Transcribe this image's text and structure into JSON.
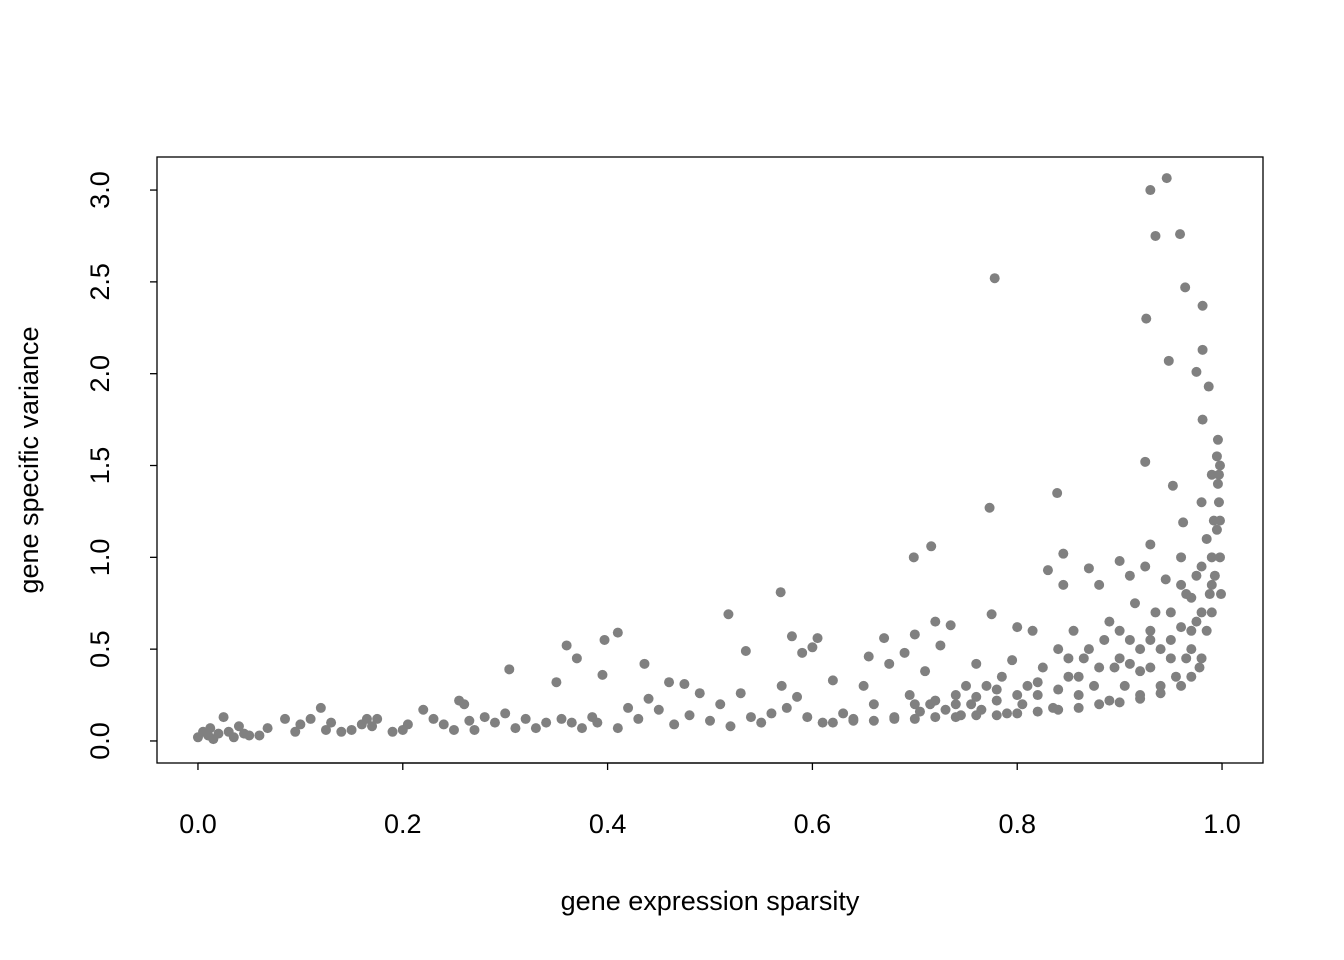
{
  "chart_data": {
    "type": "scatter",
    "title": "",
    "xlabel": "gene expression sparsity",
    "ylabel": "gene specific variance",
    "xlim": [
      -0.04,
      1.04
    ],
    "ylim": [
      -0.12,
      3.18
    ],
    "xticks": [
      0,
      0.2,
      0.4,
      0.6,
      0.8,
      1.0
    ],
    "xtick_labels": [
      "0.0",
      "0.2",
      "0.4",
      "0.6",
      "0.8",
      "1.0"
    ],
    "yticks": [
      0,
      0.5,
      1.0,
      1.5,
      2.0,
      2.5,
      3.0
    ],
    "ytick_labels": [
      "0.0",
      "0.5",
      "1.0",
      "1.5",
      "2.0",
      "2.5",
      "3.0"
    ],
    "grid": false,
    "legend": "none",
    "point_color": "#808080",
    "points": [
      [
        0,
        0.02
      ],
      [
        0.005,
        0.05
      ],
      [
        0.01,
        0.03
      ],
      [
        0.012,
        0.07
      ],
      [
        0.015,
        0.01
      ],
      [
        0.02,
        0.04
      ],
      [
        0.025,
        0.13
      ],
      [
        0.03,
        0.05
      ],
      [
        0.035,
        0.02
      ],
      [
        0.04,
        0.08
      ],
      [
        0.045,
        0.04
      ],
      [
        0.05,
        0.03
      ],
      [
        0.06,
        0.03
      ],
      [
        0.068,
        0.07
      ],
      [
        0.085,
        0.12
      ],
      [
        0.095,
        0.05
      ],
      [
        0.1,
        0.09
      ],
      [
        0.11,
        0.12
      ],
      [
        0.12,
        0.18
      ],
      [
        0.125,
        0.06
      ],
      [
        0.13,
        0.1
      ],
      [
        0.14,
        0.05
      ],
      [
        0.15,
        0.06
      ],
      [
        0.16,
        0.09
      ],
      [
        0.165,
        0.12
      ],
      [
        0.17,
        0.08
      ],
      [
        0.175,
        0.12
      ],
      [
        0.19,
        0.05
      ],
      [
        0.2,
        0.06
      ],
      [
        0.205,
        0.09
      ],
      [
        0.22,
        0.17
      ],
      [
        0.23,
        0.12
      ],
      [
        0.24,
        0.09
      ],
      [
        0.25,
        0.06
      ],
      [
        0.255,
        0.22
      ],
      [
        0.26,
        0.2
      ],
      [
        0.265,
        0.11
      ],
      [
        0.27,
        0.06
      ],
      [
        0.28,
        0.13
      ],
      [
        0.29,
        0.1
      ],
      [
        0.3,
        0.15
      ],
      [
        0.304,
        0.39
      ],
      [
        0.31,
        0.07
      ],
      [
        0.32,
        0.12
      ],
      [
        0.33,
        0.07
      ],
      [
        0.34,
        0.1
      ],
      [
        0.35,
        0.32
      ],
      [
        0.355,
        0.12
      ],
      [
        0.36,
        0.52
      ],
      [
        0.365,
        0.1
      ],
      [
        0.37,
        0.45
      ],
      [
        0.375,
        0.07
      ],
      [
        0.385,
        0.13
      ],
      [
        0.39,
        0.1
      ],
      [
        0.395,
        0.36
      ],
      [
        0.397,
        0.55
      ],
      [
        0.41,
        0.59
      ],
      [
        0.41,
        0.07
      ],
      [
        0.42,
        0.18
      ],
      [
        0.43,
        0.12
      ],
      [
        0.436,
        0.42
      ],
      [
        0.44,
        0.23
      ],
      [
        0.45,
        0.17
      ],
      [
        0.46,
        0.32
      ],
      [
        0.465,
        0.09
      ],
      [
        0.475,
        0.31
      ],
      [
        0.48,
        0.14
      ],
      [
        0.49,
        0.26
      ],
      [
        0.5,
        0.11
      ],
      [
        0.51,
        0.2
      ],
      [
        0.518,
        0.69
      ],
      [
        0.52,
        0.08
      ],
      [
        0.53,
        0.26
      ],
      [
        0.535,
        0.49
      ],
      [
        0.54,
        0.13
      ],
      [
        0.55,
        0.1
      ],
      [
        0.56,
        0.15
      ],
      [
        0.569,
        0.81
      ],
      [
        0.57,
        0.3
      ],
      [
        0.575,
        0.18
      ],
      [
        0.58,
        0.57
      ],
      [
        0.585,
        0.24
      ],
      [
        0.59,
        0.48
      ],
      [
        0.595,
        0.13
      ],
      [
        0.6,
        0.51
      ],
      [
        0.605,
        0.56
      ],
      [
        0.61,
        0.1
      ],
      [
        0.62,
        0.33
      ],
      [
        0.63,
        0.15
      ],
      [
        0.64,
        0.12
      ],
      [
        0.65,
        0.3
      ],
      [
        0.655,
        0.46
      ],
      [
        0.66,
        0.2
      ],
      [
        0.67,
        0.56
      ],
      [
        0.675,
        0.42
      ],
      [
        0.68,
        0.13
      ],
      [
        0.69,
        0.48
      ],
      [
        0.695,
        0.25
      ],
      [
        0.699,
        1.0
      ],
      [
        0.7,
        0.58
      ],
      [
        0.705,
        0.16
      ],
      [
        0.71,
        0.38
      ],
      [
        0.715,
        0.2
      ],
      [
        0.716,
        1.06
      ],
      [
        0.72,
        0.65
      ],
      [
        0.725,
        0.52
      ],
      [
        0.73,
        0.17
      ],
      [
        0.735,
        0.63
      ],
      [
        0.74,
        0.25
      ],
      [
        0.745,
        0.14
      ],
      [
        0.75,
        0.3
      ],
      [
        0.755,
        0.2
      ],
      [
        0.76,
        0.42
      ],
      [
        0.765,
        0.17
      ],
      [
        0.77,
        0.3
      ],
      [
        0.773,
        1.27
      ],
      [
        0.775,
        0.69
      ],
      [
        0.778,
        2.52
      ],
      [
        0.78,
        0.22
      ],
      [
        0.785,
        0.35
      ],
      [
        0.79,
        0.15
      ],
      [
        0.795,
        0.44
      ],
      [
        0.8,
        0.62
      ],
      [
        0.805,
        0.2
      ],
      [
        0.81,
        0.3
      ],
      [
        0.815,
        0.6
      ],
      [
        0.82,
        0.25
      ],
      [
        0.825,
        0.4
      ],
      [
        0.83,
        0.93
      ],
      [
        0.835,
        0.18
      ],
      [
        0.839,
        1.35
      ],
      [
        0.84,
        0.5
      ],
      [
        0.845,
        1.02
      ],
      [
        0.845,
        0.85
      ],
      [
        0.85,
        0.35
      ],
      [
        0.855,
        0.6
      ],
      [
        0.86,
        0.25
      ],
      [
        0.865,
        0.45
      ],
      [
        0.87,
        0.94
      ],
      [
        0.875,
        0.3
      ],
      [
        0.88,
        0.85
      ],
      [
        0.885,
        0.55
      ],
      [
        0.89,
        0.22
      ],
      [
        0.895,
        0.4
      ],
      [
        0.9,
        0.98
      ],
      [
        0.9,
        0.6
      ],
      [
        0.905,
        0.3
      ],
      [
        0.91,
        0.9
      ],
      [
        0.915,
        0.75
      ],
      [
        0.92,
        0.5
      ],
      [
        0.92,
        0.25
      ],
      [
        0.925,
        0.95
      ],
      [
        0.925,
        1.52
      ],
      [
        0.926,
        2.3
      ],
      [
        0.93,
        1.07
      ],
      [
        0.93,
        3.0
      ],
      [
        0.93,
        0.4
      ],
      [
        0.935,
        2.75
      ],
      [
        0.935,
        0.7
      ],
      [
        0.94,
        0.3
      ],
      [
        0.945,
        0.88
      ],
      [
        0.946,
        3.065
      ],
      [
        0.948,
        2.07
      ],
      [
        0.95,
        0.55
      ],
      [
        0.952,
        1.39
      ],
      [
        0.955,
        0.35
      ],
      [
        0.959,
        2.76
      ],
      [
        0.96,
        1.0
      ],
      [
        0.962,
        1.19
      ],
      [
        0.964,
        2.47
      ],
      [
        0.965,
        0.8
      ],
      [
        0.965,
        0.45
      ],
      [
        0.97,
        0.6
      ],
      [
        0.975,
        0.9
      ],
      [
        0.975,
        2.01
      ],
      [
        0.978,
        0.4
      ],
      [
        0.98,
        1.3
      ],
      [
        0.981,
        2.13
      ],
      [
        0.981,
        2.37
      ],
      [
        0.981,
        1.75
      ],
      [
        0.985,
        1.1
      ],
      [
        0.987,
        1.93
      ],
      [
        0.988,
        0.8
      ],
      [
        0.99,
        1.45
      ],
      [
        0.992,
        1.2
      ],
      [
        0.995,
        1.55
      ],
      [
        0.996,
        1.64
      ],
      [
        0.997,
        1.3
      ],
      [
        0.998,
        1.0
      ],
      [
        0.62,
        0.1
      ],
      [
        0.64,
        0.11
      ],
      [
        0.66,
        0.11
      ],
      [
        0.68,
        0.12
      ],
      [
        0.7,
        0.12
      ],
      [
        0.72,
        0.13
      ],
      [
        0.74,
        0.13
      ],
      [
        0.76,
        0.14
      ],
      [
        0.78,
        0.14
      ],
      [
        0.8,
        0.15
      ],
      [
        0.82,
        0.16
      ],
      [
        0.84,
        0.17
      ],
      [
        0.86,
        0.18
      ],
      [
        0.88,
        0.2
      ],
      [
        0.9,
        0.21
      ],
      [
        0.92,
        0.23
      ],
      [
        0.94,
        0.26
      ],
      [
        0.96,
        0.3
      ],
      [
        0.97,
        0.35
      ],
      [
        0.98,
        0.45
      ],
      [
        0.99,
        0.7
      ],
      [
        0.7,
        0.2
      ],
      [
        0.72,
        0.22
      ],
      [
        0.74,
        0.2
      ],
      [
        0.76,
        0.24
      ],
      [
        0.78,
        0.28
      ],
      [
        0.8,
        0.25
      ],
      [
        0.82,
        0.32
      ],
      [
        0.84,
        0.28
      ],
      [
        0.86,
        0.35
      ],
      [
        0.88,
        0.4
      ],
      [
        0.9,
        0.45
      ],
      [
        0.91,
        0.55
      ],
      [
        0.92,
        0.38
      ],
      [
        0.93,
        0.6
      ],
      [
        0.94,
        0.5
      ],
      [
        0.95,
        0.7
      ],
      [
        0.96,
        0.62
      ],
      [
        0.97,
        0.78
      ],
      [
        0.975,
        0.65
      ],
      [
        0.98,
        0.95
      ],
      [
        0.985,
        0.6
      ],
      [
        0.99,
        1.0
      ],
      [
        0.993,
        0.9
      ],
      [
        0.996,
        1.4
      ],
      [
        0.998,
        1.5
      ],
      [
        0.998,
        1.2
      ],
      [
        0.999,
        0.8
      ],
      [
        0.85,
        0.45
      ],
      [
        0.87,
        0.5
      ],
      [
        0.89,
        0.65
      ],
      [
        0.91,
        0.42
      ],
      [
        0.93,
        0.55
      ],
      [
        0.95,
        0.45
      ],
      [
        0.96,
        0.85
      ],
      [
        0.97,
        0.5
      ],
      [
        0.98,
        0.7
      ],
      [
        0.99,
        0.85
      ],
      [
        0.995,
        1.15
      ],
      [
        0.997,
        1.45
      ]
    ]
  }
}
